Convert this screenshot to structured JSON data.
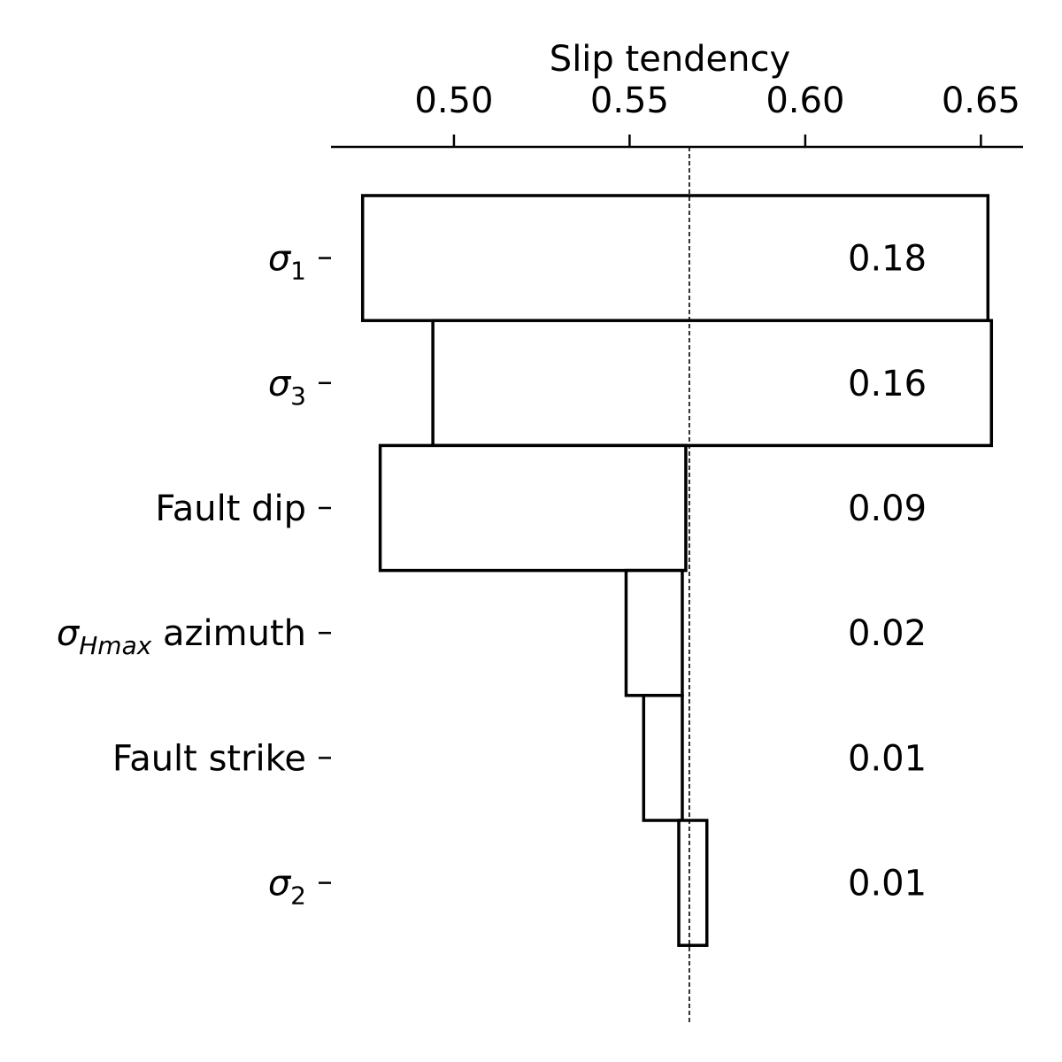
{
  "chart_data": {
    "type": "bar",
    "subtype": "tornado",
    "orientation": "horizontal",
    "xlabel": "Slip tendency",
    "x_axis_position": "top",
    "xlim": [
      0.465,
      0.662
    ],
    "xticks": [
      0.5,
      0.55,
      0.6,
      0.65
    ],
    "xtick_labels": [
      "0.50",
      "0.55",
      "0.60",
      "0.65"
    ],
    "baseline": 0.567,
    "grid": false,
    "colors": {
      "bar_fill": "#ffffff",
      "bar_edge": "#000000",
      "reference_line": "#000000"
    },
    "categories": [
      {
        "id": "sigma1",
        "symbol": "σ",
        "sub": "1",
        "text": "",
        "low": 0.474,
        "high": 0.652,
        "value_label": "0.18"
      },
      {
        "id": "sigma3",
        "symbol": "σ",
        "sub": "3",
        "text": "",
        "low": 0.494,
        "high": 0.653,
        "value_label": "0.16"
      },
      {
        "id": "fault-dip",
        "symbol": "",
        "sub": "",
        "text": "Fault dip",
        "low": 0.479,
        "high": 0.566,
        "value_label": "0.09"
      },
      {
        "id": "shmax-azimuth",
        "symbol": "σ",
        "sub": "Hmax",
        "text": " azimuth",
        "low": 0.549,
        "high": 0.565,
        "value_label": "0.02"
      },
      {
        "id": "fault-strike",
        "symbol": "",
        "sub": "",
        "text": "Fault strike",
        "low": 0.554,
        "high": 0.565,
        "value_label": "0.01"
      },
      {
        "id": "sigma2",
        "symbol": "σ",
        "sub": "2",
        "text": "",
        "low": 0.564,
        "high": 0.572,
        "value_label": "0.01"
      }
    ]
  }
}
